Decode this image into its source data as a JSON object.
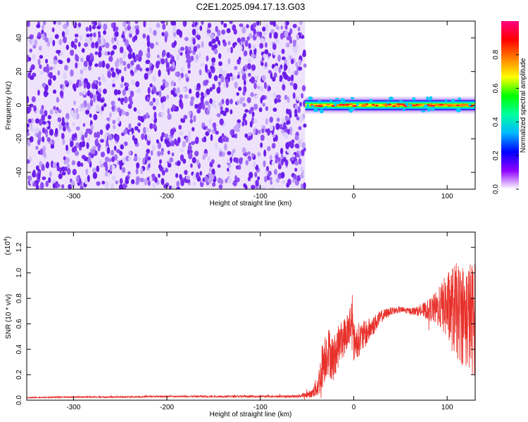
{
  "title": "C2E1.2025.094.17.13.G03",
  "colors": {
    "snr_line": "#e8302a",
    "spectrogram_noise": "#7a2cf0",
    "axis": "#000000"
  },
  "chart_data": [
    {
      "type": "heatmap",
      "xlabel": "Height of straight line (km)",
      "ylabel": "Frequency (Hz)",
      "xlim": [
        -350,
        130
      ],
      "ylim": [
        -50,
        50
      ],
      "x_ticks": [
        "-300",
        "-200",
        "-100",
        "0",
        "100"
      ],
      "y_ticks": [
        "-40",
        "-20",
        "0",
        "20",
        "40"
      ],
      "noise_region_x": [
        -350,
        -52
      ],
      "signal_band_x": [
        -52,
        130
      ],
      "signal_center_hz": 0,
      "colorbar": {
        "label": "Normalized spectral amplitude",
        "range": [
          0.0,
          1.0
        ],
        "ticks": [
          "0.0",
          "0.2",
          "0.4",
          "0.6",
          "0.8"
        ],
        "colormap": [
          "#ffffff",
          "#8e00ff",
          "#0000ff",
          "#00b7ff",
          "#00ffa0",
          "#00ff00",
          "#ffff00",
          "#ff8000",
          "#ff0000",
          "#ff0080"
        ]
      }
    },
    {
      "type": "line",
      "xlabel": "Height of straight line (km)",
      "ylabel": "SNR (10 * v/v)",
      "y_multiplier_label": "(x10",
      "y_multiplier_exp": "4",
      "y_multiplier_close": ")",
      "xlim": [
        -350,
        130
      ],
      "ylim": [
        0,
        1.32
      ],
      "x_ticks": [
        "-300",
        "-200",
        "-100",
        "0",
        "100"
      ],
      "y_ticks": [
        "0.0",
        "0.2",
        "0.4",
        "0.6",
        "0.8",
        "1.0",
        "1.2"
      ],
      "series": [
        {
          "x": [
            -350,
            -300,
            -250,
            -200,
            -150,
            -100,
            -60,
            -45,
            -38,
            -33,
            -28,
            -22,
            -15,
            -8,
            -2,
            0,
            10,
            20,
            30,
            40,
            50,
            60,
            70,
            80,
            90,
            95,
            100,
            105,
            110,
            115,
            120,
            125,
            130
          ],
          "y": [
            0.02,
            0.025,
            0.025,
            0.03,
            0.03,
            0.03,
            0.03,
            0.05,
            0.12,
            0.3,
            0.4,
            0.32,
            0.45,
            0.52,
            0.62,
            0.45,
            0.5,
            0.58,
            0.66,
            0.7,
            0.71,
            0.7,
            0.7,
            0.71,
            0.72,
            0.74,
            0.73,
            0.72,
            0.7,
            0.68,
            0.66,
            0.65,
            0.64
          ],
          "spread": [
            0.004,
            0.006,
            0.006,
            0.007,
            0.007,
            0.008,
            0.01,
            0.03,
            0.1,
            0.2,
            0.2,
            0.18,
            0.16,
            0.15,
            0.22,
            0.15,
            0.12,
            0.08,
            0.05,
            0.03,
            0.025,
            0.025,
            0.04,
            0.08,
            0.15,
            0.2,
            0.28,
            0.34,
            0.38,
            0.4,
            0.42,
            0.45,
            0.45
          ]
        }
      ]
    }
  ]
}
